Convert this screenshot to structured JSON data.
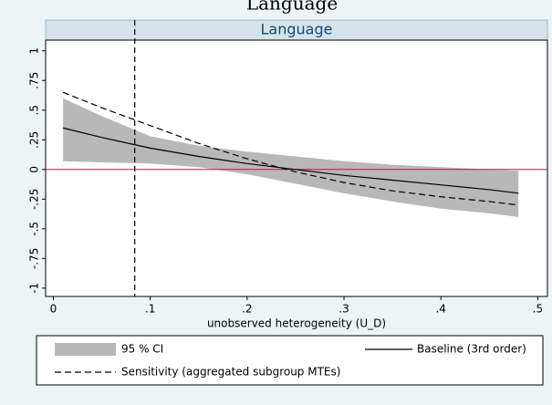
{
  "chart_data": {
    "type": "line",
    "title": "Language",
    "subtitle": "Language",
    "x_label": "unobserved heterogeneity (U_D)",
    "x": [
      0.01,
      0.05,
      0.1,
      0.15,
      0.2,
      0.25,
      0.3,
      0.35,
      0.4,
      0.45,
      0.48
    ],
    "series": [
      {
        "name": "95 % CI",
        "kind": "band",
        "color": "#b8b8b8",
        "values": [
          0.6,
          0.45,
          0.28,
          0.2,
          0.15,
          0.11,
          0.07,
          0.04,
          0.02,
          0,
          -0.01
        ],
        "lower": [
          0.07,
          0.06,
          0.05,
          0.02,
          -0.04,
          -0.12,
          -0.2,
          -0.27,
          -0.33,
          -0.37,
          -0.4
        ]
      },
      {
        "name": "Baseline (3rd order)",
        "kind": "solid",
        "color": "#000000",
        "values": [
          0.35,
          0.27,
          0.18,
          0.11,
          0.05,
          0,
          -0.05,
          -0.09,
          -0.13,
          -0.17,
          -0.2
        ]
      },
      {
        "name": "Sensitivity (aggregated subgroup MTEs)",
        "kind": "dashed",
        "color": "#000000",
        "values": [
          0.65,
          0.52,
          0.37,
          0.22,
          0.09,
          -0.02,
          -0.11,
          -0.18,
          -0.23,
          -0.27,
          -0.3
        ]
      }
    ],
    "vline": 0.084,
    "hline": 0,
    "hline_color": "#c0143c",
    "xlim": [
      -0.008,
      0.51
    ],
    "xticks": [
      0,
      {
        "value": 0.1,
        "label": ".1"
      },
      {
        "value": 0.2,
        "label": ".2"
      },
      {
        "value": 0.3,
        "label": ".3"
      },
      {
        "value": 0.4,
        "label": ".4"
      },
      {
        "value": 0.5,
        "label": ".5"
      }
    ],
    "ylim": [
      -1.07,
      1.09
    ],
    "yticks": [
      1,
      {
        "value": 0.75,
        "label": ".75"
      },
      {
        "value": 0.5,
        "label": ".5"
      },
      {
        "value": 0.25,
        "label": ".25"
      },
      0,
      {
        "value": -0.25,
        "label": "-.25"
      },
      {
        "value": -0.5,
        "label": "-.5"
      },
      {
        "value": -0.75,
        "label": "-.75"
      },
      -1
    ]
  }
}
